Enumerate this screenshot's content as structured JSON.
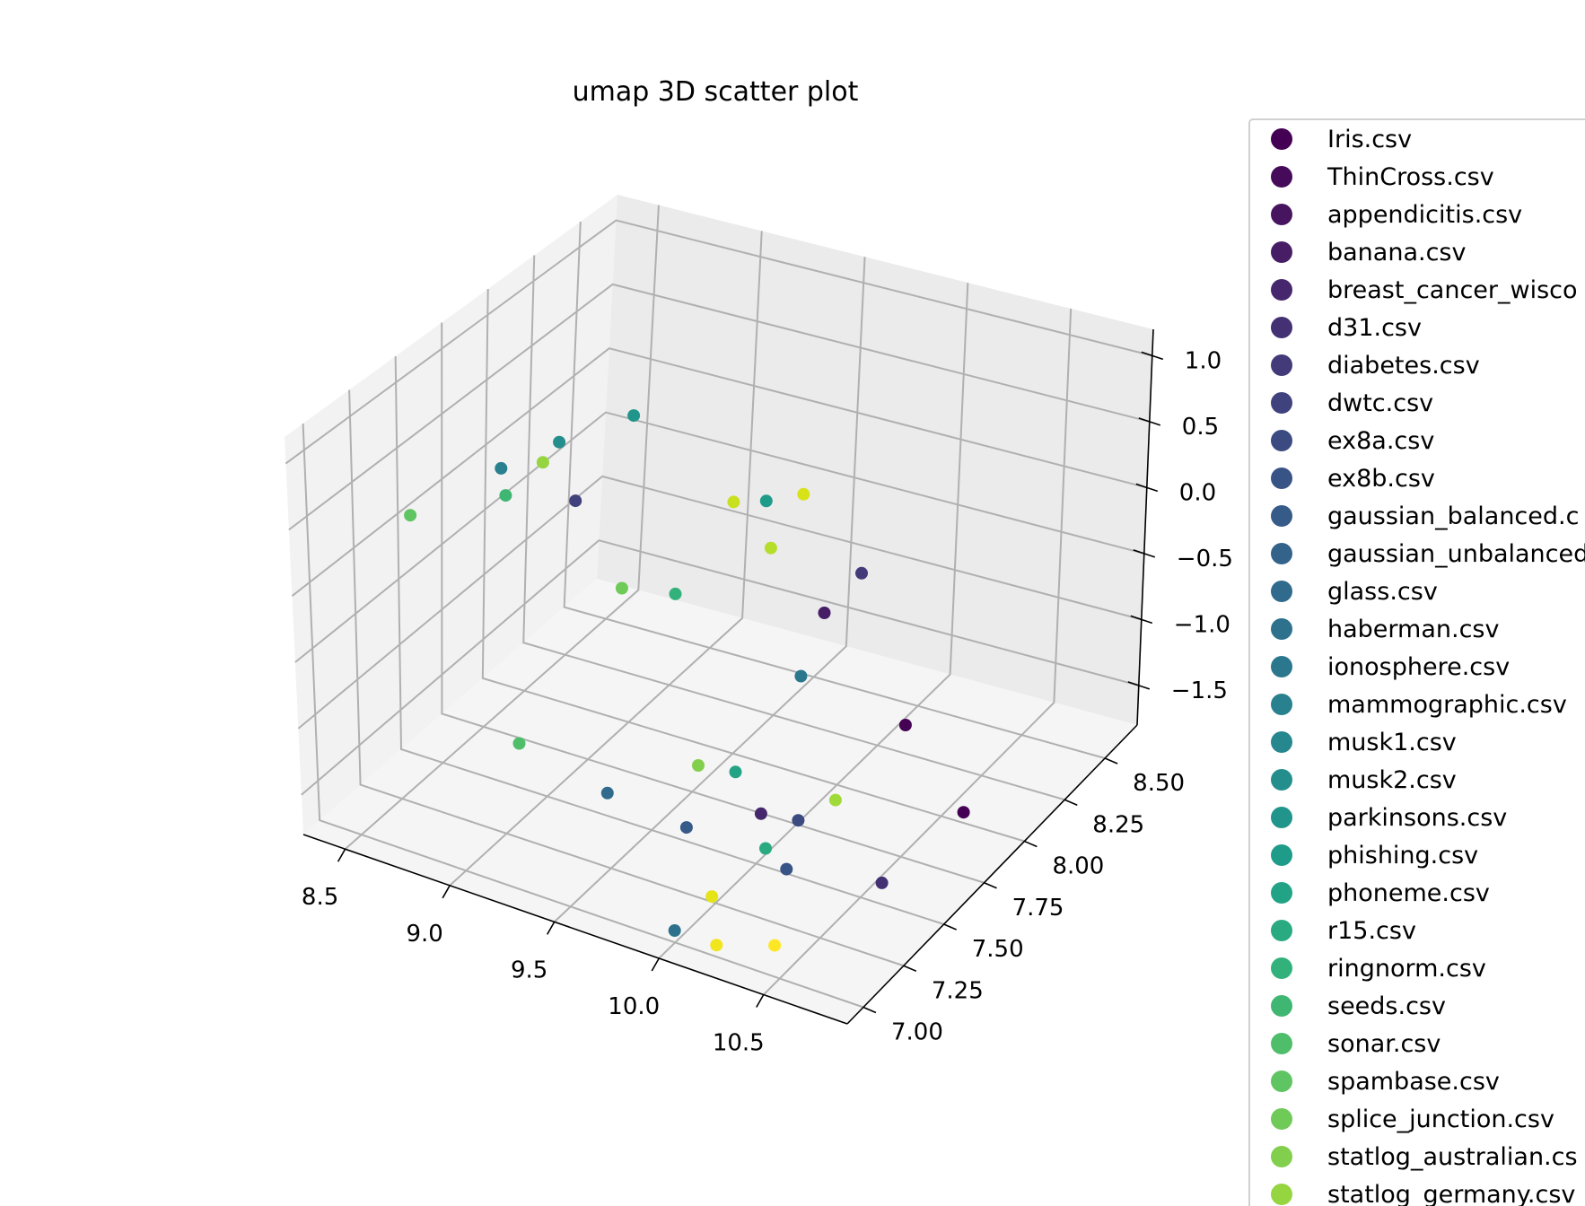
{
  "chart_data": {
    "type": "scatter",
    "projection": "3d",
    "title": "umap 3D scatter plot",
    "colormap": "viridis",
    "grid": true,
    "legend_position": "right, outside plot",
    "x_axis": {
      "ticks": [
        "8.5",
        "9.0",
        "9.5",
        "10.0",
        "10.5"
      ],
      "range": [
        8.3,
        10.9
      ]
    },
    "y_axis": {
      "ticks": [
        "7.00",
        "7.25",
        "7.50",
        "7.75",
        "8.00",
        "8.25",
        "8.50"
      ],
      "range": [
        6.9,
        8.7
      ]
    },
    "z_axis": {
      "ticks": [
        "1.0",
        "0.5",
        "0.0",
        "−0.5",
        "−1.0",
        "−1.5"
      ],
      "range": [
        -1.8,
        1.2
      ]
    },
    "legend": [
      {
        "label": "Iris.csv",
        "color": "#440154"
      },
      {
        "label": "ThinCross.csv",
        "color": "#450b5a"
      },
      {
        "label": "appendicitis.csv",
        "color": "#47155f"
      },
      {
        "label": "banana.csv",
        "color": "#471e66"
      },
      {
        "label": "breast_cancer_wisco",
        "color": "#46276d"
      },
      {
        "label": "d31.csv",
        "color": "#443174"
      },
      {
        "label": "diabetes.csv",
        "color": "#423a79"
      },
      {
        "label": "dwtc.csv",
        "color": "#3f427c"
      },
      {
        "label": "ex8a.csv",
        "color": "#3c4a82"
      },
      {
        "label": "ex8b.csv",
        "color": "#385385"
      },
      {
        "label": "gaussian_balanced.c",
        "color": "#365b88"
      },
      {
        "label": "gaussian_unbalanced",
        "color": "#33628a"
      },
      {
        "label": "glass.csv",
        "color": "#306a8c"
      },
      {
        "label": "haberman.csv",
        "color": "#2d718d"
      },
      {
        "label": "ionosphere.csv",
        "color": "#2b788e"
      },
      {
        "label": "mammographic.csv",
        "color": "#29808e"
      },
      {
        "label": "musk1.csv",
        "color": "#26878e"
      },
      {
        "label": "musk2.csv",
        "color": "#248e8d"
      },
      {
        "label": "parkinsons.csv",
        "color": "#21958b"
      },
      {
        "label": "phishing.csv",
        "color": "#1f9c89"
      },
      {
        "label": "phoneme.csv",
        "color": "#22a385"
      },
      {
        "label": "r15.csv",
        "color": "#29aa81"
      },
      {
        "label": "ringnorm.csv",
        "color": "#33b17b"
      },
      {
        "label": "seeds.csv",
        "color": "#3fb773"
      },
      {
        "label": "sonar.csv",
        "color": "#4ebe6b"
      },
      {
        "label": "spambase.csv",
        "color": "#5fc462"
      },
      {
        "label": "splice_junction.csv",
        "color": "#6fca58"
      },
      {
        "label": "statlog_australian.cs",
        "color": "#82cf4d"
      },
      {
        "label": "statlog_germany.csv",
        "color": "#95d540"
      }
    ],
    "points": [
      {
        "x": 10.4,
        "y": 7.9,
        "z": -0.9,
        "color": "#440154"
      },
      {
        "x": 10.6,
        "y": 8.0,
        "z": -1.55,
        "color": "#440154"
      },
      {
        "x": 9.7,
        "y": 8.3,
        "z": -0.85,
        "color": "#471e66"
      },
      {
        "x": 10.1,
        "y": 7.4,
        "z": -1.2,
        "color": "#46276d"
      },
      {
        "x": 10.6,
        "y": 7.5,
        "z": -1.55,
        "color": "#443174"
      },
      {
        "x": 9.8,
        "y": 8.4,
        "z": -0.6,
        "color": "#423a79"
      },
      {
        "x": 8.9,
        "y": 7.8,
        "z": 0.1,
        "color": "#3f427c"
      },
      {
        "x": 10.2,
        "y": 7.5,
        "z": -1.3,
        "color": "#3c4a82"
      },
      {
        "x": 10.3,
        "y": 7.3,
        "z": -1.4,
        "color": "#385385"
      },
      {
        "x": 9.9,
        "y": 7.2,
        "z": -1.2,
        "color": "#365b88"
      },
      {
        "x": 9.6,
        "y": 7.1,
        "z": -1.0,
        "color": "#306a8c"
      },
      {
        "x": 10.0,
        "y": 7.0,
        "z": -1.7,
        "color": "#2d718d"
      },
      {
        "x": 9.9,
        "y": 7.9,
        "z": -0.8,
        "color": "#2b788e"
      },
      {
        "x": 8.7,
        "y": 7.6,
        "z": 0.45,
        "color": "#29808e"
      },
      {
        "x": 8.9,
        "y": 7.7,
        "z": 0.65,
        "color": "#248e8d"
      },
      {
        "x": 9.1,
        "y": 7.9,
        "z": 0.75,
        "color": "#21958b"
      },
      {
        "x": 9.5,
        "y": 8.2,
        "z": 0.0,
        "color": "#1f9c89"
      },
      {
        "x": 9.9,
        "y": 7.5,
        "z": -1.1,
        "color": "#22a385"
      },
      {
        "x": 10.2,
        "y": 7.3,
        "z": -1.3,
        "color": "#29aa81"
      },
      {
        "x": 9.3,
        "y": 7.9,
        "z": -0.5,
        "color": "#33b17b"
      },
      {
        "x": 8.8,
        "y": 7.5,
        "z": 0.4,
        "color": "#3fb773"
      },
      {
        "x": 9.1,
        "y": 7.2,
        "z": -1.0,
        "color": "#4ebe6b"
      },
      {
        "x": 8.5,
        "y": 7.3,
        "z": 0.3,
        "color": "#5fc462"
      },
      {
        "x": 9.2,
        "y": 7.7,
        "z": -0.3,
        "color": "#6fca58"
      },
      {
        "x": 9.8,
        "y": 7.4,
        "z": -1.0,
        "color": "#82cf4d"
      },
      {
        "x": 8.9,
        "y": 7.6,
        "z": 0.6,
        "color": "#95d540"
      },
      {
        "x": 9.6,
        "y": 8.1,
        "z": -0.2,
        "color": "#b5de2b"
      },
      {
        "x": 9.5,
        "y": 8.0,
        "z": 0.2,
        "color": "#c8e020"
      },
      {
        "x": 9.6,
        "y": 8.3,
        "z": 0.0,
        "color": "#d8e219"
      },
      {
        "x": 10.1,
        "y": 7.1,
        "z": -1.5,
        "color": "#e5e419"
      },
      {
        "x": 10.2,
        "y": 7.0,
        "z": -1.7,
        "color": "#f1e51d"
      },
      {
        "x": 10.4,
        "y": 7.1,
        "z": -1.7,
        "color": "#fde725"
      },
      {
        "x": 10.3,
        "y": 7.6,
        "z": -1.2,
        "color": "#a0da39"
      }
    ]
  }
}
